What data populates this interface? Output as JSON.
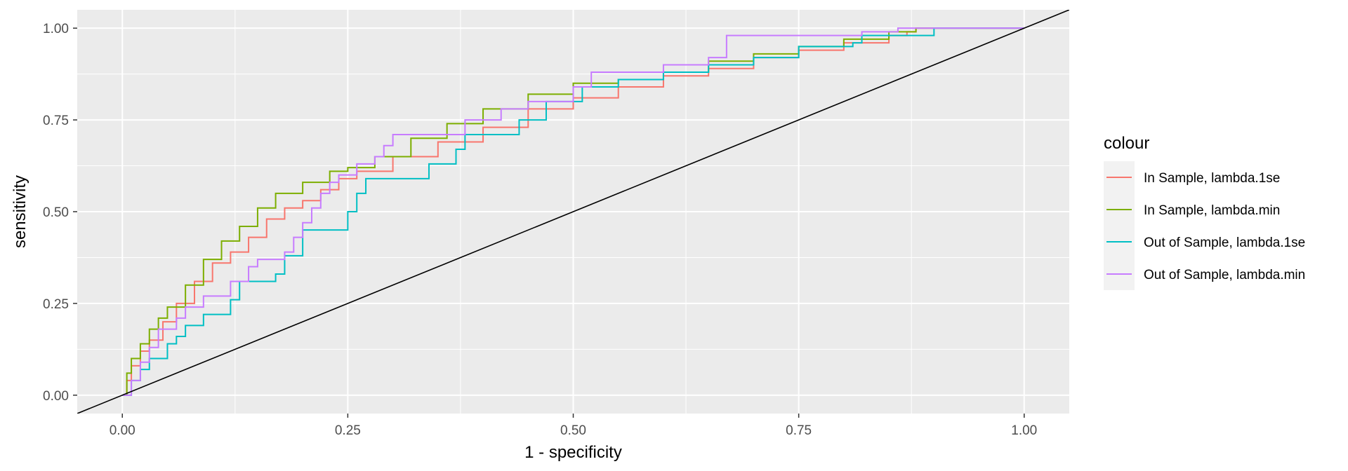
{
  "chart_data": {
    "type": "line",
    "xlabel": "1 - specificity",
    "ylabel": "sensitivity",
    "xlim": [
      -0.05,
      1.05
    ],
    "ylim": [
      -0.05,
      1.05
    ],
    "x_ticks": [
      0,
      0.25,
      0.5,
      0.75,
      1
    ],
    "x_tick_labels": [
      "0.00",
      "0.25",
      "0.50",
      "0.75",
      "1.00"
    ],
    "y_ticks": [
      0,
      0.25,
      0.5,
      0.75,
      1
    ],
    "y_tick_labels": [
      "0.00",
      "0.25",
      "0.50",
      "0.75",
      "1.00"
    ],
    "grid": true,
    "background": "#ebebeb",
    "legend": {
      "title": "colour",
      "position": "right"
    },
    "series": [
      {
        "name": "In Sample, lambda.1se",
        "color": "#F8766D",
        "x": [
          0,
          0.005,
          0.01,
          0.02,
          0.03,
          0.045,
          0.06,
          0.08,
          0.1,
          0.12,
          0.14,
          0.16,
          0.18,
          0.2,
          0.22,
          0.24,
          0.26,
          0.3,
          0.35,
          0.4,
          0.45,
          0.5,
          0.55,
          0.6,
          0.65,
          0.7,
          0.75,
          0.8,
          0.85,
          0.87,
          0.88,
          1
        ],
        "y": [
          0,
          0.04,
          0.08,
          0.12,
          0.15,
          0.2,
          0.25,
          0.31,
          0.36,
          0.39,
          0.43,
          0.48,
          0.51,
          0.53,
          0.56,
          0.59,
          0.61,
          0.65,
          0.69,
          0.73,
          0.78,
          0.81,
          0.84,
          0.87,
          0.89,
          0.92,
          0.94,
          0.96,
          0.98,
          0.99,
          1,
          1
        ]
      },
      {
        "name": "In Sample, lambda.min",
        "color": "#7CAE00",
        "x": [
          0,
          0.005,
          0.01,
          0.02,
          0.03,
          0.04,
          0.05,
          0.07,
          0.09,
          0.11,
          0.13,
          0.15,
          0.17,
          0.2,
          0.23,
          0.25,
          0.28,
          0.32,
          0.36,
          0.4,
          0.45,
          0.5,
          0.55,
          0.6,
          0.65,
          0.7,
          0.75,
          0.8,
          0.85,
          0.88,
          1
        ],
        "y": [
          0,
          0.06,
          0.1,
          0.14,
          0.18,
          0.21,
          0.24,
          0.3,
          0.37,
          0.42,
          0.46,
          0.51,
          0.55,
          0.58,
          0.61,
          0.62,
          0.65,
          0.7,
          0.74,
          0.78,
          0.82,
          0.85,
          0.86,
          0.88,
          0.91,
          0.93,
          0.95,
          0.97,
          0.99,
          1,
          1
        ]
      },
      {
        "name": "Out of Sample, lambda.1se",
        "color": "#00BFC4",
        "x": [
          0,
          0.01,
          0.02,
          0.03,
          0.05,
          0.06,
          0.07,
          0.08,
          0.09,
          0.12,
          0.13,
          0.17,
          0.18,
          0.2,
          0.24,
          0.25,
          0.26,
          0.27,
          0.29,
          0.34,
          0.37,
          0.38,
          0.42,
          0.44,
          0.46,
          0.47,
          0.48,
          0.5,
          0.51,
          0.55,
          0.6,
          0.65,
          0.7,
          0.75,
          0.81,
          0.82,
          0.87,
          0.9,
          1
        ],
        "y": [
          0,
          0.04,
          0.07,
          0.1,
          0.14,
          0.16,
          0.19,
          0.19,
          0.22,
          0.26,
          0.31,
          0.33,
          0.38,
          0.45,
          0.45,
          0.5,
          0.55,
          0.59,
          0.59,
          0.63,
          0.67,
          0.71,
          0.71,
          0.75,
          0.75,
          0.8,
          0.8,
          0.8,
          0.84,
          0.86,
          0.88,
          0.9,
          0.92,
          0.95,
          0.96,
          0.98,
          0.98,
          1,
          1
        ]
      },
      {
        "name": "Out of Sample, lambda.min",
        "color": "#C77CFF",
        "x": [
          0,
          0.01,
          0.02,
          0.03,
          0.04,
          0.06,
          0.07,
          0.09,
          0.12,
          0.14,
          0.15,
          0.18,
          0.19,
          0.2,
          0.21,
          0.22,
          0.23,
          0.24,
          0.26,
          0.28,
          0.29,
          0.3,
          0.34,
          0.38,
          0.42,
          0.45,
          0.5,
          0.52,
          0.55,
          0.6,
          0.65,
          0.67,
          0.72,
          0.77,
          0.82,
          0.86,
          1
        ],
        "y": [
          0,
          0.04,
          0.09,
          0.13,
          0.18,
          0.21,
          0.24,
          0.27,
          0.31,
          0.35,
          0.37,
          0.39,
          0.43,
          0.47,
          0.51,
          0.55,
          0.58,
          0.6,
          0.63,
          0.65,
          0.68,
          0.71,
          0.71,
          0.75,
          0.78,
          0.8,
          0.84,
          0.88,
          0.88,
          0.9,
          0.92,
          0.98,
          0.98,
          0.98,
          0.99,
          1,
          1
        ]
      },
      {
        "name": "",
        "color": "#000000",
        "x": [
          -0.05,
          1.05
        ],
        "y": [
          -0.05,
          1.05
        ]
      }
    ]
  }
}
